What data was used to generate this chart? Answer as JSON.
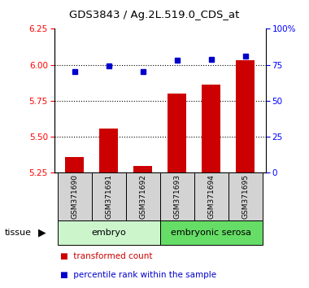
{
  "title": "GDS3843 / Ag.2L.519.0_CDS_at",
  "samples": [
    "GSM371690",
    "GSM371691",
    "GSM371692",
    "GSM371693",
    "GSM371694",
    "GSM371695"
  ],
  "bar_values": [
    5.36,
    5.56,
    5.3,
    5.8,
    5.86,
    6.03
  ],
  "scatter_percentiles": [
    70,
    74,
    70,
    78,
    79,
    81
  ],
  "ylim_left": [
    5.25,
    6.25
  ],
  "yticks_left": [
    5.25,
    5.5,
    5.75,
    6.0,
    6.25
  ],
  "yticks_right": [
    0,
    25,
    50,
    75,
    100
  ],
  "ylim_right": [
    0,
    100
  ],
  "bar_color": "#cc0000",
  "scatter_color": "#0000cc",
  "tissue_colors": [
    "#ccf5cc",
    "#66dd66"
  ],
  "grid_lines": [
    5.5,
    5.75,
    6.0
  ],
  "legend_items": [
    "transformed count",
    "percentile rank within the sample"
  ],
  "legend_colors": [
    "#cc0000",
    "#0000cc"
  ],
  "xlabel": "tissue",
  "fig_width": 3.8,
  "fig_height": 3.54
}
